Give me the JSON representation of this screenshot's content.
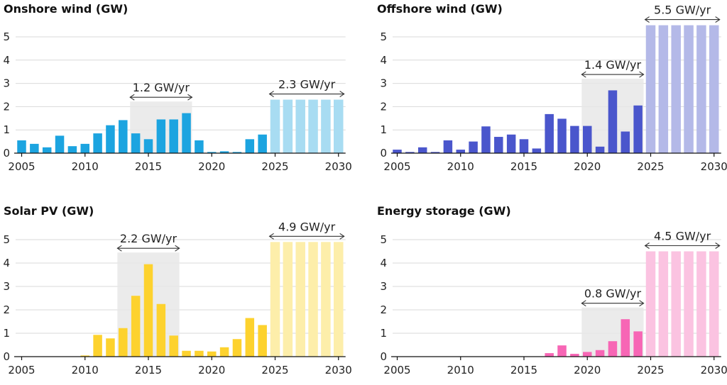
{
  "chart_data": [
    {
      "type": "bar",
      "title": "Onshore wind (GW)",
      "ylim": [
        0,
        5.5
      ],
      "yticks": [
        0,
        1,
        2,
        3,
        4,
        5
      ],
      "xticks": [
        2005,
        2010,
        2015,
        2020,
        2025,
        2030
      ],
      "color": "#1ca4e0",
      "projection_color": "#a8dcf2",
      "grid": true,
      "historical": {
        "years": [
          2005,
          2006,
          2007,
          2008,
          2009,
          2010,
          2011,
          2012,
          2013,
          2014,
          2015,
          2016,
          2017,
          2018,
          2019,
          2020,
          2021,
          2022,
          2023,
          2024
        ],
        "values": [
          0.55,
          0.4,
          0.25,
          0.75,
          0.3,
          0.4,
          0.85,
          1.2,
          1.42,
          0.85,
          0.6,
          1.45,
          1.45,
          1.72,
          0.55,
          0.05,
          0.08,
          0.05,
          0.6,
          0.8
        ]
      },
      "projection": {
        "years": [
          2025,
          2026,
          2027,
          2028,
          2029,
          2030
        ],
        "values": [
          2.3,
          2.3,
          2.3,
          2.3,
          2.3,
          2.3
        ]
      },
      "annotations": [
        {
          "label": "1.2 GW/yr",
          "start_year": 2014,
          "end_year": 2018,
          "shaded": true
        },
        {
          "label": "2.3 GW/yr",
          "start_year": 2025,
          "end_year": 2030,
          "shaded": false
        }
      ]
    },
    {
      "type": "bar",
      "title": "Offshore wind (GW)",
      "ylim": [
        0,
        5.5
      ],
      "yticks": [
        0,
        1,
        2,
        3,
        4,
        5
      ],
      "xticks": [
        2005,
        2010,
        2015,
        2020,
        2025,
        2030
      ],
      "color": "#4a56cc",
      "projection_color": "#b4b9e8",
      "grid": true,
      "historical": {
        "years": [
          2005,
          2006,
          2007,
          2008,
          2009,
          2010,
          2011,
          2012,
          2013,
          2014,
          2015,
          2016,
          2017,
          2018,
          2019,
          2020,
          2021,
          2022,
          2023,
          2024
        ],
        "values": [
          0.15,
          0.05,
          0.25,
          0.05,
          0.55,
          0.15,
          0.5,
          1.15,
          0.7,
          0.8,
          0.6,
          0.2,
          1.68,
          1.48,
          1.17,
          1.17,
          0.28,
          2.7,
          0.93,
          2.05
        ]
      },
      "projection": {
        "years": [
          2025,
          2026,
          2027,
          2028,
          2029,
          2030
        ],
        "values": [
          5.5,
          5.5,
          5.5,
          5.5,
          5.5,
          5.5
        ]
      },
      "annotations": [
        {
          "label": "1.4 GW/yr",
          "start_year": 2020,
          "end_year": 2024,
          "shaded": true
        },
        {
          "label": "5.5 GW/yr",
          "start_year": 2025,
          "end_year": 2030,
          "shaded": false
        }
      ]
    },
    {
      "type": "bar",
      "title": "Solar PV (GW)",
      "ylim": [
        0,
        5
      ],
      "yticks": [
        0,
        1,
        2,
        3,
        4,
        5
      ],
      "xticks": [
        2005,
        2010,
        2015,
        2020,
        2025,
        2030
      ],
      "color": "#fdd22e",
      "projection_color": "#fdeeaa",
      "grid": true,
      "historical": {
        "years": [
          2005,
          2006,
          2007,
          2008,
          2009,
          2010,
          2011,
          2012,
          2013,
          2014,
          2015,
          2016,
          2017,
          2018,
          2019,
          2020,
          2021,
          2022,
          2023,
          2024
        ],
        "values": [
          0,
          0,
          0,
          0,
          0,
          0.05,
          0.93,
          0.78,
          1.22,
          2.6,
          3.95,
          2.25,
          0.9,
          0.25,
          0.25,
          0.22,
          0.4,
          0.75,
          1.65,
          1.35
        ]
      },
      "projection": {
        "years": [
          2025,
          2026,
          2027,
          2028,
          2029,
          2030
        ],
        "values": [
          4.9,
          4.9,
          4.9,
          4.9,
          4.9,
          4.9
        ]
      },
      "annotations": [
        {
          "label": "2.2 GW/yr",
          "start_year": 2013,
          "end_year": 2017,
          "shaded": true
        },
        {
          "label": "4.9 GW/yr",
          "start_year": 2025,
          "end_year": 2030,
          "shaded": false
        }
      ]
    },
    {
      "type": "bar",
      "title": "Energy storage (GW)",
      "ylim": [
        0,
        5
      ],
      "yticks": [
        0,
        1,
        2,
        3,
        4,
        5
      ],
      "xticks": [
        2005,
        2010,
        2015,
        2020,
        2025,
        2030
      ],
      "color": "#f766b5",
      "projection_color": "#fbc3e1",
      "grid": true,
      "historical": {
        "years": [
          2005,
          2006,
          2007,
          2008,
          2009,
          2010,
          2011,
          2012,
          2013,
          2014,
          2015,
          2016,
          2017,
          2018,
          2019,
          2020,
          2021,
          2022,
          2023,
          2024
        ],
        "values": [
          0,
          0,
          0,
          0,
          0,
          0,
          0,
          0,
          0,
          0,
          0,
          0,
          0.15,
          0.48,
          0.12,
          0.2,
          0.28,
          0.66,
          1.6,
          1.08
        ]
      },
      "projection": {
        "years": [
          2025,
          2026,
          2027,
          2028,
          2029,
          2030
        ],
        "values": [
          4.5,
          4.5,
          4.5,
          4.5,
          4.5,
          4.5
        ]
      },
      "annotations": [
        {
          "label": "0.8 GW/yr",
          "start_year": 2020,
          "end_year": 2024,
          "shaded": true
        },
        {
          "label": "4.5 GW/yr",
          "start_year": 2025,
          "end_year": 2030,
          "shaded": false
        }
      ]
    }
  ]
}
